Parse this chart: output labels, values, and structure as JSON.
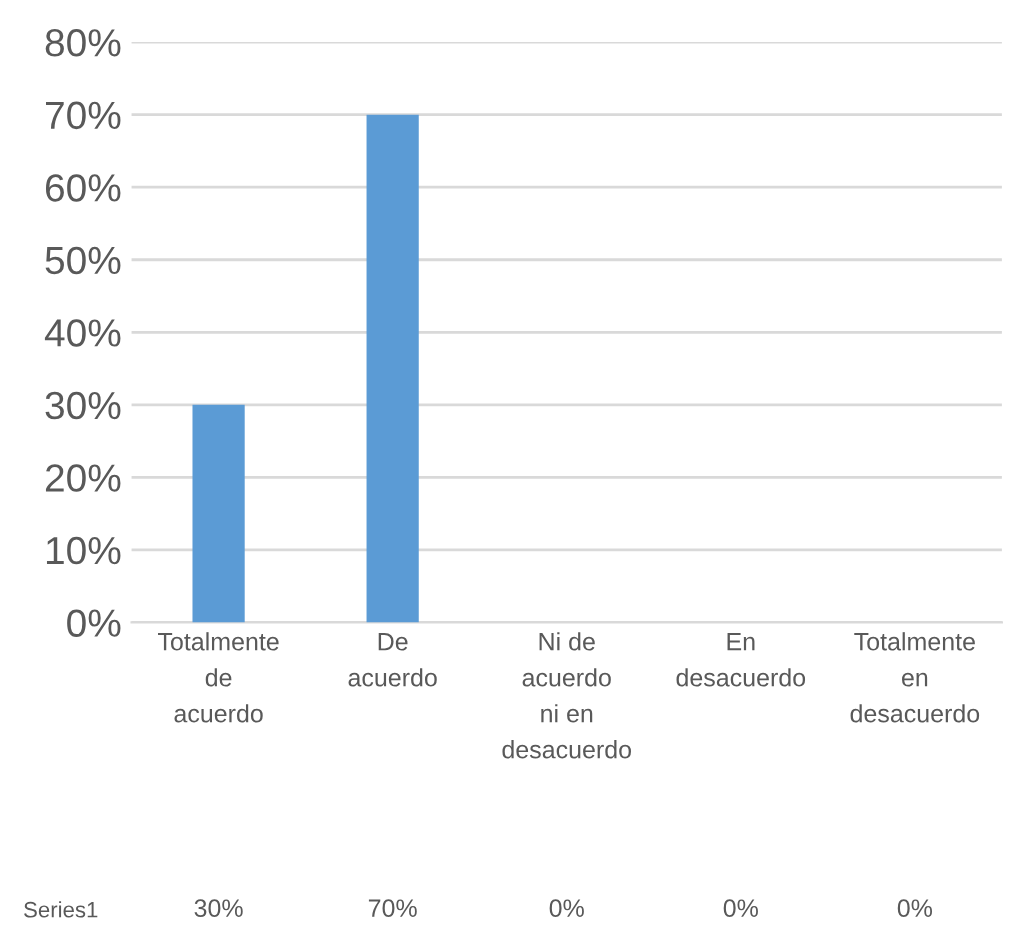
{
  "chart_data": {
    "type": "bar",
    "categories": [
      "Totalmente de acuerdo",
      "De acuerdo",
      "Ni de acuerdo ni en desacuerdo",
      "En desacuerdo",
      "Totalmente en desacuerdo"
    ],
    "series": [
      {
        "name": "Series1",
        "color": "#5b9bd5",
        "values": [
          30,
          70,
          0,
          0,
          0
        ]
      }
    ],
    "ylim": [
      0,
      80
    ],
    "yticks": [
      {
        "value": 0,
        "label": "0%"
      },
      {
        "value": 10,
        "label": "10%"
      },
      {
        "value": 20,
        "label": "20%"
      },
      {
        "value": 30,
        "label": "30%"
      },
      {
        "value": 40,
        "label": "40%"
      },
      {
        "value": 50,
        "label": "50%"
      },
      {
        "value": 60,
        "label": "60%"
      },
      {
        "value": 70,
        "label": "70%"
      },
      {
        "value": 80,
        "label": "80%"
      }
    ],
    "value_labels": [
      "30%",
      "70%",
      "0%",
      "0%",
      "0%"
    ],
    "grid": "y",
    "legend": false
  }
}
